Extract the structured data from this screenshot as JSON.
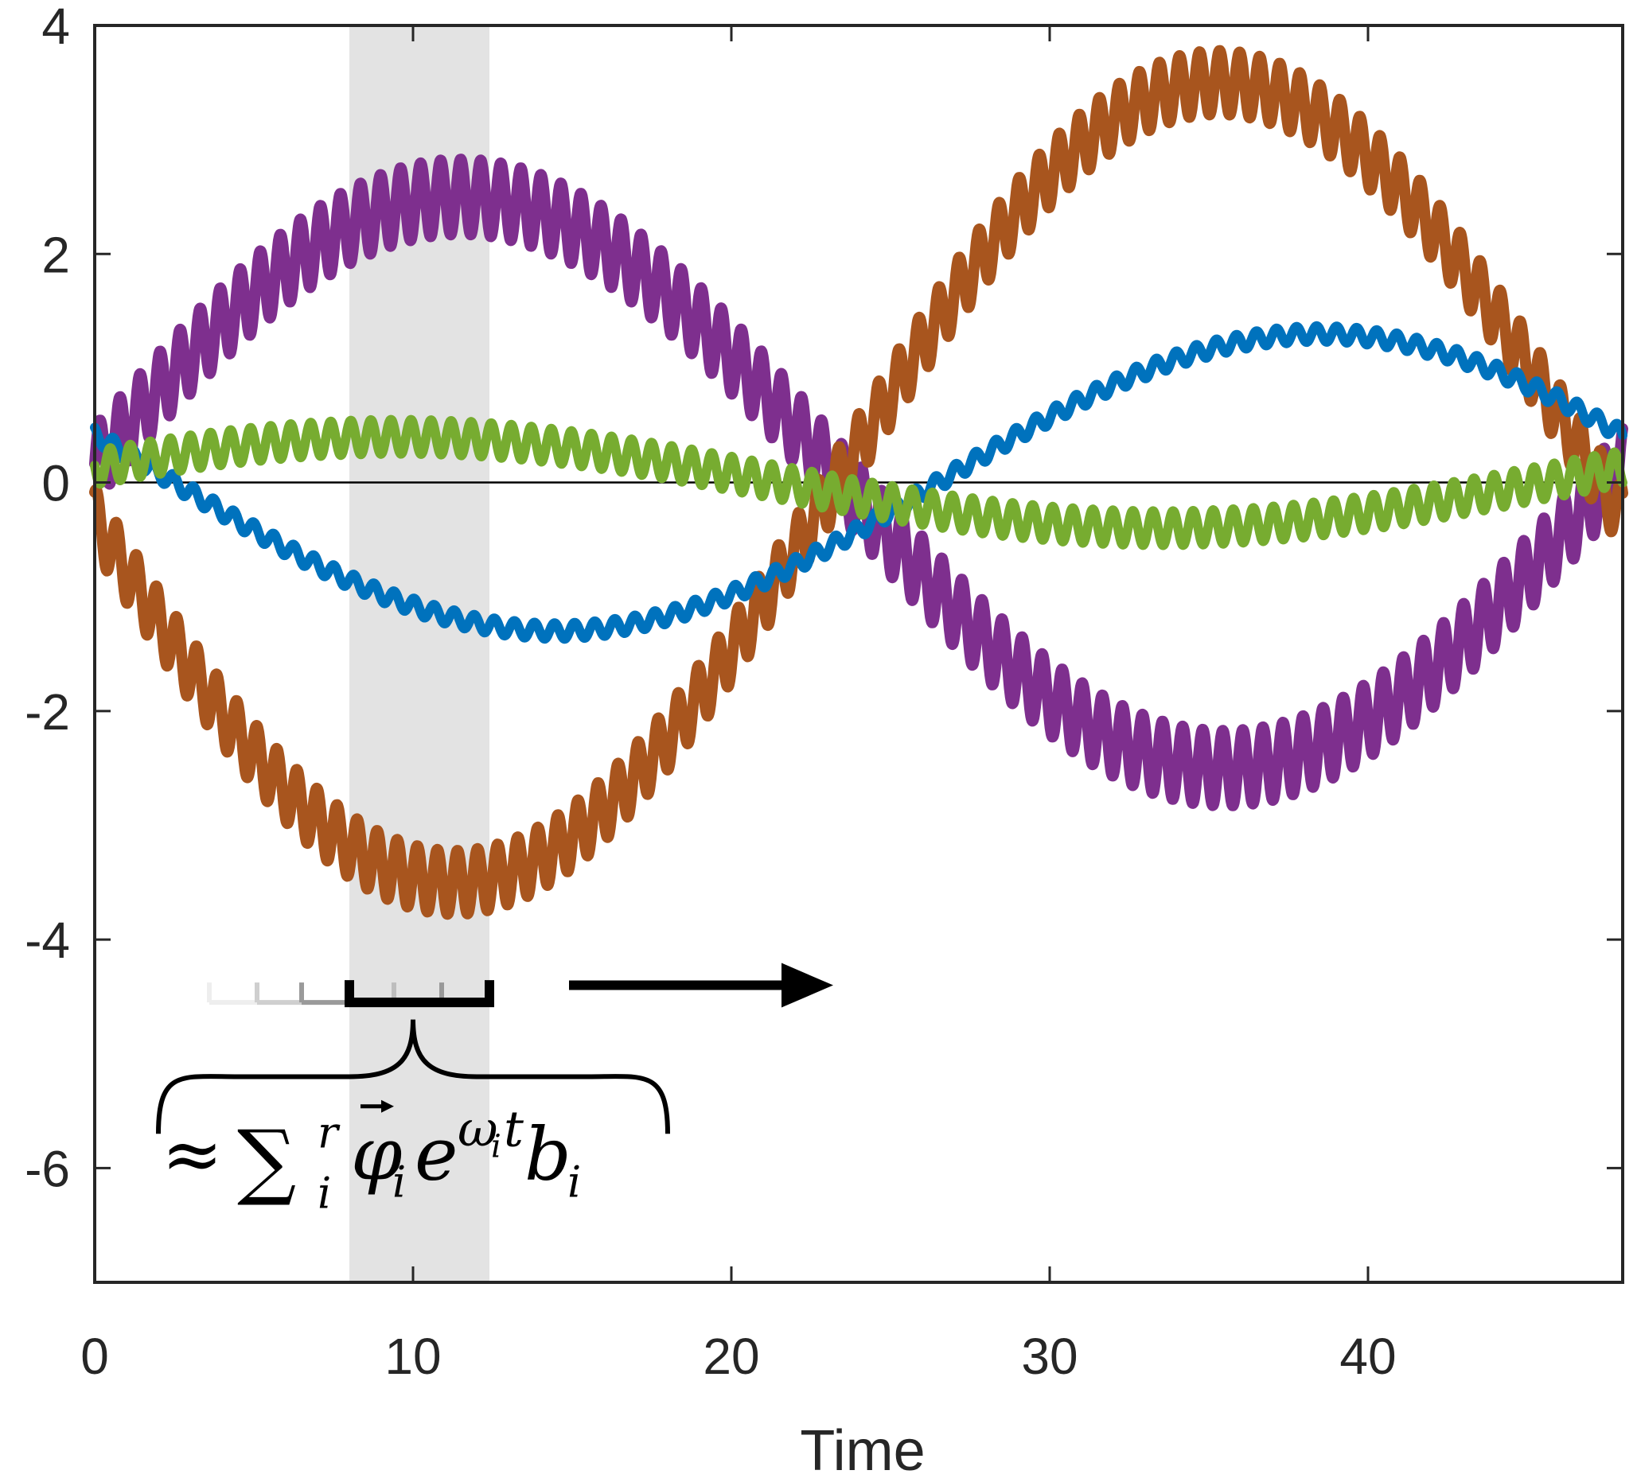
{
  "chart_data": {
    "type": "line",
    "title": "",
    "xlabel": "Time",
    "ylabel": "",
    "xlim": [
      0,
      48
    ],
    "ylim": [
      -7,
      4
    ],
    "grid": false,
    "legend": null,
    "x_ticks": [
      0,
      10,
      20,
      30,
      40
    ],
    "x_tick_labels": [
      "0",
      "10",
      "20",
      "30",
      "40"
    ],
    "y_ticks": [
      4,
      2,
      0,
      -2,
      -4,
      -6
    ],
    "y_tick_labels": [
      "4",
      "2",
      "0",
      "-2",
      "-4",
      "-6"
    ],
    "zero_line": 0,
    "highlight_window": {
      "x_start": 8,
      "x_end": 12.4,
      "color": "#e3e3e3"
    },
    "series": [
      {
        "name": "purple-signal",
        "color": "#7e2f8e",
        "slow_amplitude": 2.5,
        "slow_peak_t": 11.5,
        "slow_period": 48,
        "fast_amplitude": 0.33,
        "fast_period": 0.63,
        "y_at_t0": 0.25,
        "min": -2.85,
        "max": 2.85
      },
      {
        "name": "orange-signal",
        "color": "#a8551e",
        "slow_amplitude": 3.5,
        "slow_peak_t": 35.3,
        "slow_period": 48,
        "fast_amplitude": 0.28,
        "fast_period": 0.63,
        "y_at_t0": 0.1,
        "min": -3.8,
        "max": 3.8
      },
      {
        "name": "blue-signal",
        "color": "#0072bd",
        "slow_amplitude": 1.3,
        "slow_peak_t": 38.5,
        "slow_period": 48,
        "fast_amplitude": 0.07,
        "fast_period": 0.63,
        "y_at_t0": 0.4,
        "min": -1.38,
        "max": 1.38
      },
      {
        "name": "green-signal",
        "color": "#77ac30",
        "slow_amplitude": 0.4,
        "slow_peak_t": 9.5,
        "slow_period": 48,
        "fast_amplitude": 0.15,
        "fast_period": 0.63,
        "y_at_t0": 0.3,
        "min": -0.55,
        "max": 0.55
      }
    ],
    "annotations": {
      "window_ticks": [
        {
          "x": 3.6,
          "shade": "#eeeeee"
        },
        {
          "x": 5.1,
          "shade": "#cfcfcf"
        },
        {
          "x": 6.5,
          "shade": "#9a9a9a"
        },
        {
          "x": 9.4,
          "shade": "#bdbdbd"
        },
        {
          "x": 10.9,
          "shade": "#999999"
        }
      ],
      "window_bracket": {
        "x_start": 8,
        "x_end": 12.4,
        "y": -4.55
      },
      "arrow": {
        "x_start": 14.9,
        "x_end": 23.2,
        "y": -4.4,
        "direction": "right"
      },
      "brace": {
        "x_start": 2,
        "x_end": 18,
        "y_top": -4.7,
        "y_bottom": -5.7
      },
      "formula_text": "≈ Σᵢʳ φ⃗ᵢ e^{ωᵢt} bᵢ",
      "formula_parts": {
        "approx": "≈",
        "sum": "∑",
        "sum_sup": "r",
        "sum_sub": "i",
        "phi": "φ",
        "phi_sub": "i",
        "e": "e",
        "exp_omega": "ω",
        "exp_omega_sub": "i",
        "exp_t": "t",
        "b": "b",
        "b_sub": "i"
      },
      "formula_position": {
        "x": 2.1,
        "y": -6.1
      }
    }
  }
}
